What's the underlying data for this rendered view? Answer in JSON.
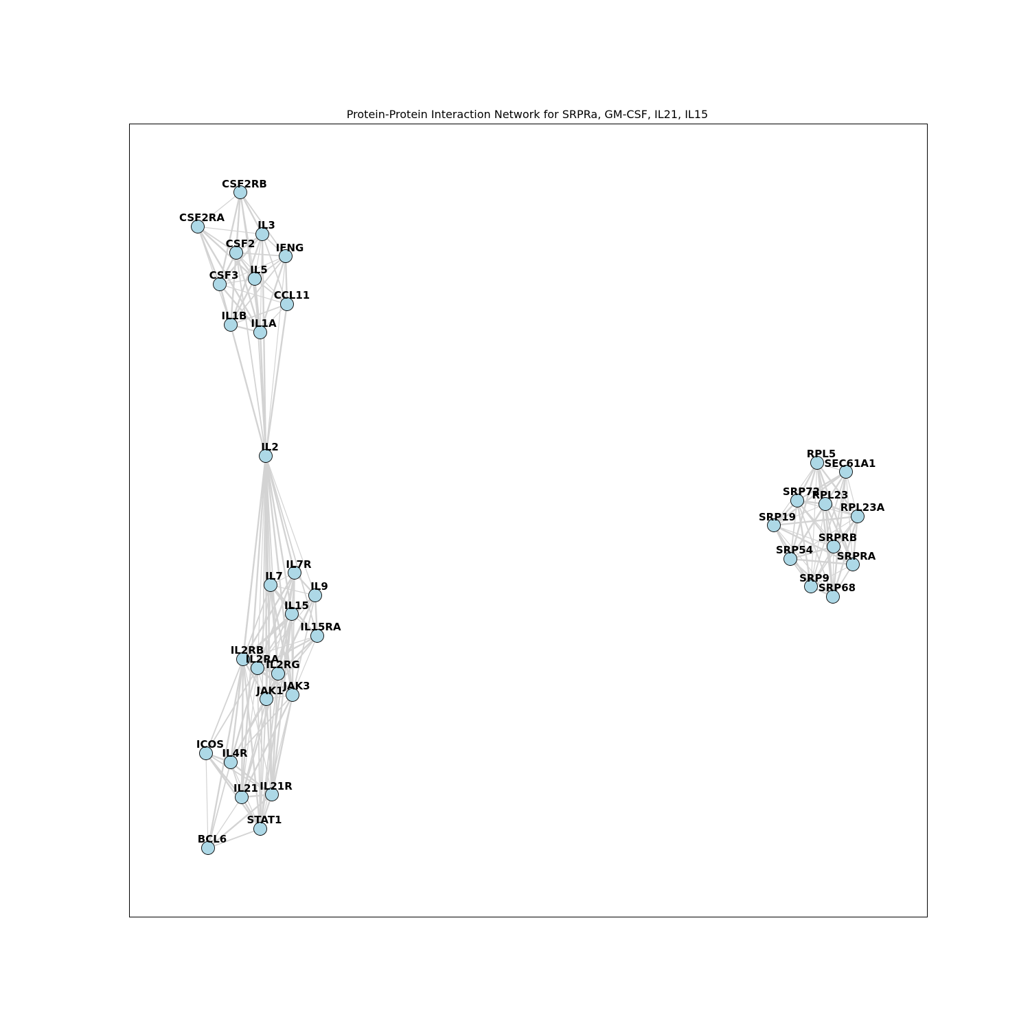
{
  "title": "Protein-Protein Interaction Network for SRPRa, GM-CSF, IL21, IL15",
  "colors": {
    "node_fill": "#add8e6",
    "node_stroke": "#000000",
    "edge": "#d3d3d3",
    "frame": "#000000",
    "background": "#ffffff"
  },
  "graph": {
    "nodes": [
      "CSF2RB",
      "CSF2RA",
      "IL3",
      "CSF2",
      "IFNG",
      "IL5",
      "CSF3",
      "CCL11",
      "IL1B",
      "IL1A",
      "IL2",
      "IL7R",
      "IL7",
      "IL9",
      "IL15",
      "IL15RA",
      "IL2RB",
      "IL2RA",
      "IL2RG",
      "JAK1",
      "JAK3",
      "ICOS",
      "IL4R",
      "IL21",
      "IL21R",
      "STAT1",
      "BCL6",
      "RPL5",
      "SEC61A1",
      "SRP72",
      "RPL23",
      "RPL23A",
      "SRP19",
      "SRPRB",
      "SRP54",
      "SRPRA",
      "SRP9",
      "SRP68"
    ],
    "edges": [
      [
        "CSF2RB",
        "CSF2RA"
      ],
      [
        "CSF2RB",
        "IL3"
      ],
      [
        "CSF2RB",
        "CSF2"
      ],
      [
        "CSF2RB",
        "IFNG"
      ],
      [
        "CSF2RB",
        "IL5"
      ],
      [
        "CSF2RB",
        "CSF3"
      ],
      [
        "CSF2RB",
        "IL1B"
      ],
      [
        "CSF2RB",
        "IL1A"
      ],
      [
        "CSF2RA",
        "IL3"
      ],
      [
        "CSF2RA",
        "CSF2"
      ],
      [
        "CSF2RA",
        "CSF3"
      ],
      [
        "CSF2RA",
        "IL5"
      ],
      [
        "CSF2RA",
        "IL1B"
      ],
      [
        "CSF2RA",
        "IL1A"
      ],
      [
        "IL3",
        "CSF2"
      ],
      [
        "IL3",
        "IFNG"
      ],
      [
        "IL3",
        "IL5"
      ],
      [
        "IL3",
        "CSF3"
      ],
      [
        "IL3",
        "CCL11"
      ],
      [
        "IL3",
        "IL1B"
      ],
      [
        "IL3",
        "IL1A"
      ],
      [
        "CSF2",
        "IFNG"
      ],
      [
        "CSF2",
        "IL5"
      ],
      [
        "CSF2",
        "CSF3"
      ],
      [
        "CSF2",
        "CCL11"
      ],
      [
        "CSF2",
        "IL1B"
      ],
      [
        "CSF2",
        "IL1A"
      ],
      [
        "IFNG",
        "IL5"
      ],
      [
        "IFNG",
        "CSF3"
      ],
      [
        "IFNG",
        "CCL11"
      ],
      [
        "IFNG",
        "IL1B"
      ],
      [
        "IFNG",
        "IL1A"
      ],
      [
        "IL5",
        "CSF3"
      ],
      [
        "IL5",
        "CCL11"
      ],
      [
        "IL5",
        "IL1B"
      ],
      [
        "IL5",
        "IL1A"
      ],
      [
        "CSF3",
        "CCL11"
      ],
      [
        "CSF3",
        "IL1B"
      ],
      [
        "CSF3",
        "IL1A"
      ],
      [
        "CCL11",
        "IL1B"
      ],
      [
        "CCL11",
        "IL1A"
      ],
      [
        "IL1B",
        "IL1A"
      ],
      [
        "IL2",
        "CSF2"
      ],
      [
        "IL2",
        "IL3"
      ],
      [
        "IL2",
        "IFNG"
      ],
      [
        "IL2",
        "IL5"
      ],
      [
        "IL2",
        "CSF3"
      ],
      [
        "IL2",
        "CCL11"
      ],
      [
        "IL2",
        "IL1B"
      ],
      [
        "IL2",
        "IL1A"
      ],
      [
        "IL2",
        "IL7R"
      ],
      [
        "IL2",
        "IL7"
      ],
      [
        "IL2",
        "IL9"
      ],
      [
        "IL2",
        "IL15"
      ],
      [
        "IL2",
        "IL15RA"
      ],
      [
        "IL2",
        "IL2RB"
      ],
      [
        "IL2",
        "IL2RA"
      ],
      [
        "IL2",
        "IL2RG"
      ],
      [
        "IL2",
        "JAK1"
      ],
      [
        "IL2",
        "JAK3"
      ],
      [
        "IL2",
        "IL4R"
      ],
      [
        "IL2",
        "IL21"
      ],
      [
        "IL2",
        "IL21R"
      ],
      [
        "IL2",
        "STAT1"
      ],
      [
        "IL7R",
        "IL7"
      ],
      [
        "IL7R",
        "IL9"
      ],
      [
        "IL7R",
        "IL15"
      ],
      [
        "IL7R",
        "IL2RG"
      ],
      [
        "IL7R",
        "JAK1"
      ],
      [
        "IL7R",
        "JAK3"
      ],
      [
        "IL7R",
        "IL2RB"
      ],
      [
        "IL7R",
        "IL2RA"
      ],
      [
        "IL7",
        "IL9"
      ],
      [
        "IL7",
        "IL15"
      ],
      [
        "IL7",
        "IL15RA"
      ],
      [
        "IL7",
        "IL2RB"
      ],
      [
        "IL7",
        "IL2RA"
      ],
      [
        "IL7",
        "IL2RG"
      ],
      [
        "IL7",
        "JAK1"
      ],
      [
        "IL7",
        "JAK3"
      ],
      [
        "IL7",
        "STAT1"
      ],
      [
        "IL9",
        "IL15"
      ],
      [
        "IL9",
        "IL15RA"
      ],
      [
        "IL9",
        "IL2RB"
      ],
      [
        "IL9",
        "IL2RA"
      ],
      [
        "IL9",
        "IL2RG"
      ],
      [
        "IL9",
        "JAK1"
      ],
      [
        "IL9",
        "JAK3"
      ],
      [
        "IL15",
        "IL15RA"
      ],
      [
        "IL15",
        "IL2RB"
      ],
      [
        "IL15",
        "IL2RA"
      ],
      [
        "IL15",
        "IL2RG"
      ],
      [
        "IL15",
        "JAK1"
      ],
      [
        "IL15",
        "JAK3"
      ],
      [
        "IL15",
        "STAT1"
      ],
      [
        "IL15",
        "IL21R"
      ],
      [
        "IL15RA",
        "IL2RB"
      ],
      [
        "IL15RA",
        "IL2RA"
      ],
      [
        "IL15RA",
        "IL2RG"
      ],
      [
        "IL15RA",
        "JAK1"
      ],
      [
        "IL15RA",
        "JAK3"
      ],
      [
        "IL2RB",
        "IL2RA"
      ],
      [
        "IL2RB",
        "IL2RG"
      ],
      [
        "IL2RB",
        "JAK1"
      ],
      [
        "IL2RB",
        "JAK3"
      ],
      [
        "IL2RB",
        "ICOS"
      ],
      [
        "IL2RB",
        "IL4R"
      ],
      [
        "IL2RB",
        "IL21"
      ],
      [
        "IL2RB",
        "IL21R"
      ],
      [
        "IL2RB",
        "STAT1"
      ],
      [
        "IL2RB",
        "BCL6"
      ],
      [
        "IL2RA",
        "IL2RG"
      ],
      [
        "IL2RA",
        "JAK1"
      ],
      [
        "IL2RA",
        "JAK3"
      ],
      [
        "IL2RA",
        "ICOS"
      ],
      [
        "IL2RA",
        "IL4R"
      ],
      [
        "IL2RA",
        "IL21"
      ],
      [
        "IL2RA",
        "STAT1"
      ],
      [
        "IL2RG",
        "JAK1"
      ],
      [
        "IL2RG",
        "JAK3"
      ],
      [
        "IL2RG",
        "IL4R"
      ],
      [
        "IL2RG",
        "IL21"
      ],
      [
        "IL2RG",
        "IL21R"
      ],
      [
        "IL2RG",
        "STAT1"
      ],
      [
        "JAK1",
        "JAK3"
      ],
      [
        "JAK1",
        "IL4R"
      ],
      [
        "JAK1",
        "IL21"
      ],
      [
        "JAK1",
        "IL21R"
      ],
      [
        "JAK1",
        "STAT1"
      ],
      [
        "JAK3",
        "IL4R"
      ],
      [
        "JAK3",
        "IL21"
      ],
      [
        "JAK3",
        "IL21R"
      ],
      [
        "JAK3",
        "STAT1"
      ],
      [
        "ICOS",
        "IL4R"
      ],
      [
        "ICOS",
        "IL21"
      ],
      [
        "ICOS",
        "IL21R"
      ],
      [
        "ICOS",
        "BCL6"
      ],
      [
        "ICOS",
        "STAT1"
      ],
      [
        "IL4R",
        "IL21"
      ],
      [
        "IL4R",
        "IL21R"
      ],
      [
        "IL4R",
        "STAT1"
      ],
      [
        "IL4R",
        "BCL6"
      ],
      [
        "IL21",
        "IL21R"
      ],
      [
        "IL21",
        "STAT1"
      ],
      [
        "IL21",
        "BCL6"
      ],
      [
        "IL21R",
        "STAT1"
      ],
      [
        "IL21R",
        "BCL6"
      ],
      [
        "STAT1",
        "BCL6"
      ],
      [
        "RPL5",
        "SEC61A1"
      ],
      [
        "RPL5",
        "SRP72"
      ],
      [
        "RPL5",
        "RPL23"
      ],
      [
        "RPL5",
        "RPL23A"
      ],
      [
        "RPL5",
        "SRP19"
      ],
      [
        "RPL5",
        "SRPRB"
      ],
      [
        "RPL5",
        "SRP54"
      ],
      [
        "RPL5",
        "SRPRA"
      ],
      [
        "RPL5",
        "SRP9"
      ],
      [
        "RPL5",
        "SRP68"
      ],
      [
        "SEC61A1",
        "SRP72"
      ],
      [
        "SEC61A1",
        "RPL23"
      ],
      [
        "SEC61A1",
        "RPL23A"
      ],
      [
        "SEC61A1",
        "SRP19"
      ],
      [
        "SEC61A1",
        "SRPRB"
      ],
      [
        "SEC61A1",
        "SRP54"
      ],
      [
        "SEC61A1",
        "SRPRA"
      ],
      [
        "SEC61A1",
        "SRP9"
      ],
      [
        "SEC61A1",
        "SRP68"
      ],
      [
        "SRP72",
        "RPL23"
      ],
      [
        "SRP72",
        "RPL23A"
      ],
      [
        "SRP72",
        "SRP19"
      ],
      [
        "SRP72",
        "SRPRB"
      ],
      [
        "SRP72",
        "SRP54"
      ],
      [
        "SRP72",
        "SRPRA"
      ],
      [
        "SRP72",
        "SRP9"
      ],
      [
        "SRP72",
        "SRP68"
      ],
      [
        "RPL23",
        "RPL23A"
      ],
      [
        "RPL23",
        "SRP19"
      ],
      [
        "RPL23",
        "SRPRB"
      ],
      [
        "RPL23",
        "SRP54"
      ],
      [
        "RPL23",
        "SRPRA"
      ],
      [
        "RPL23",
        "SRP9"
      ],
      [
        "RPL23",
        "SRP68"
      ],
      [
        "RPL23A",
        "SRP19"
      ],
      [
        "RPL23A",
        "SRPRB"
      ],
      [
        "RPL23A",
        "SRP54"
      ],
      [
        "RPL23A",
        "SRPRA"
      ],
      [
        "RPL23A",
        "SRP9"
      ],
      [
        "RPL23A",
        "SRP68"
      ],
      [
        "SRP19",
        "SRPRB"
      ],
      [
        "SRP19",
        "SRP54"
      ],
      [
        "SRP19",
        "SRPRA"
      ],
      [
        "SRP19",
        "SRP9"
      ],
      [
        "SRP19",
        "SRP68"
      ],
      [
        "SRPRB",
        "SRP54"
      ],
      [
        "SRPRB",
        "SRPRA"
      ],
      [
        "SRPRB",
        "SRP9"
      ],
      [
        "SRPRB",
        "SRP68"
      ],
      [
        "SRP54",
        "SRPRA"
      ],
      [
        "SRP54",
        "SRP9"
      ],
      [
        "SRP54",
        "SRP68"
      ],
      [
        "SRPRA",
        "SRP9"
      ],
      [
        "SRPRA",
        "SRP68"
      ],
      [
        "SRP9",
        "SRP68"
      ]
    ]
  }
}
